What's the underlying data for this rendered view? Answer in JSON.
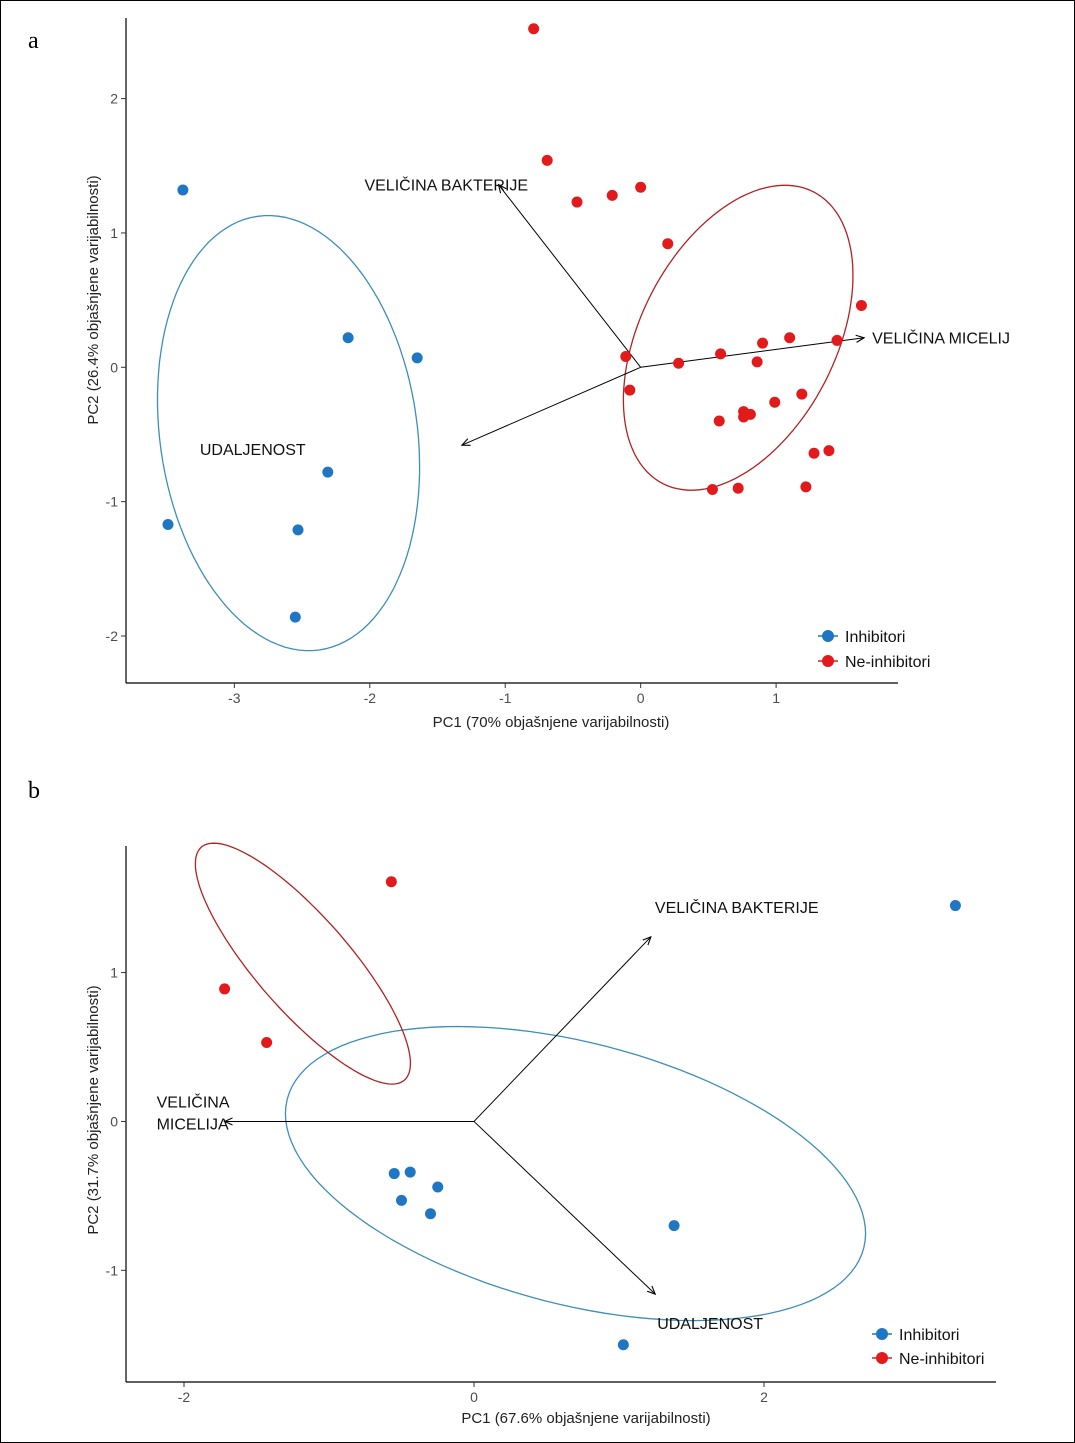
{
  "chart_data": [
    {
      "panel": "a",
      "type": "scatter",
      "xlabel": "PC1 (70% objašnjene varijabilnosti)",
      "ylabel": "PC2 (26.4%  objašnjene varijabilnosti)",
      "xlim": [
        -3.8,
        1.9
      ],
      "ylim": [
        -2.35,
        2.6
      ],
      "xticks": [
        -3,
        -2,
        -1,
        0,
        1
      ],
      "yticks": [
        -2,
        -1,
        0,
        1,
        2
      ],
      "grid": false,
      "legend_position": "bottom-right",
      "series": [
        {
          "name": "Inhibitori",
          "color": "#1f77c4",
          "points": [
            [
              -3.38,
              1.32
            ],
            [
              -2.16,
              0.22
            ],
            [
              -1.65,
              0.07
            ],
            [
              -2.31,
              -0.78
            ],
            [
              -3.49,
              -1.17
            ],
            [
              -2.53,
              -1.21
            ],
            [
              -2.55,
              -1.86
            ]
          ],
          "ellipse": {
            "cx": -2.6,
            "cy": -0.49,
            "rx": 0.95,
            "ry": 1.63,
            "angle": 8,
            "color": "#3d8fb8"
          }
        },
        {
          "name": "Ne-inhibitori",
          "color": "#e31a1c",
          "points": [
            [
              -0.79,
              2.52
            ],
            [
              -0.69,
              1.54
            ],
            [
              -0.47,
              1.23
            ],
            [
              -0.21,
              1.28
            ],
            [
              0.0,
              1.34
            ],
            [
              0.2,
              0.92
            ],
            [
              1.63,
              0.46
            ],
            [
              1.45,
              0.2
            ],
            [
              1.1,
              0.22
            ],
            [
              0.9,
              0.18
            ],
            [
              0.59,
              0.1
            ],
            [
              0.86,
              0.04
            ],
            [
              0.28,
              0.03
            ],
            [
              -0.11,
              0.08
            ],
            [
              -0.08,
              -0.17
            ],
            [
              1.19,
              -0.2
            ],
            [
              0.99,
              -0.26
            ],
            [
              0.76,
              -0.33
            ],
            [
              0.81,
              -0.35
            ],
            [
              0.76,
              -0.37
            ],
            [
              0.58,
              -0.4
            ],
            [
              1.28,
              -0.64
            ],
            [
              1.39,
              -0.62
            ],
            [
              1.22,
              -0.89
            ],
            [
              0.72,
              -0.9
            ],
            [
              0.53,
              -0.91
            ]
          ],
          "ellipse": {
            "cx": 0.72,
            "cy": 0.22,
            "rx": 0.72,
            "ry": 1.22,
            "angle": -27,
            "color": "#b22222"
          }
        }
      ],
      "loadings": [
        {
          "label": "VELIČINA BAKTERIJE",
          "x": -1.05,
          "y": 1.36
        },
        {
          "label": "VELIČINA MICELIJ",
          "x": 1.65,
          "y": 0.22
        },
        {
          "label": "UDALJENOST",
          "x": -1.32,
          "y": -0.58
        }
      ],
      "labels": {
        "panel": "a",
        "legend": [
          "Inhibitori",
          "Ne-inhibitori"
        ]
      }
    },
    {
      "panel": "b",
      "type": "scatter",
      "xlabel": "PC1 (67.6%  objašnjene varijabilnosti)",
      "ylabel": "PC2 (31.7%  objašnjene varijabilnosti)",
      "xlim": [
        -2.4,
        3.6
      ],
      "ylim": [
        -1.75,
        1.85
      ],
      "xticks": [
        -2,
        0,
        2
      ],
      "yticks": [
        -1,
        0,
        1
      ],
      "grid": false,
      "legend_position": "bottom-right",
      "series": [
        {
          "name": "Inhibitori",
          "color": "#1f77c4",
          "points": [
            [
              3.32,
              1.45
            ],
            [
              -0.55,
              -0.35
            ],
            [
              -0.44,
              -0.34
            ],
            [
              -0.25,
              -0.44
            ],
            [
              -0.5,
              -0.53
            ],
            [
              -0.3,
              -0.62
            ],
            [
              1.38,
              -0.7
            ],
            [
              1.03,
              -1.5
            ]
          ],
          "ellipse": {
            "cx": 0.7,
            "cy": -0.35,
            "rx": 2.05,
            "ry": 0.88,
            "angle": -14,
            "color": "#3d8fb8"
          }
        },
        {
          "name": "Ne-inhibitori",
          "color": "#e31a1c",
          "points": [
            [
              -0.57,
              1.61
            ],
            [
              -1.72,
              0.89
            ],
            [
              -1.43,
              0.53
            ]
          ],
          "ellipse": {
            "cx": -1.18,
            "cy": 1.06,
            "rx": 1.05,
            "ry": 0.32,
            "angle": -48,
            "color": "#b22222"
          }
        }
      ],
      "loadings": [
        {
          "label": "VELIČINA BAKTERIJE",
          "x": 1.22,
          "y": 1.24
        },
        {
          "label": "VELIČINA MICELIJA",
          "x": -1.72,
          "y": 0.0
        },
        {
          "label": "UDALJENOST",
          "x": 1.25,
          "y": -1.16
        }
      ],
      "labels": {
        "panel": "b",
        "legend": [
          "Inhibitori",
          "Ne-inhibitori"
        ]
      }
    }
  ]
}
